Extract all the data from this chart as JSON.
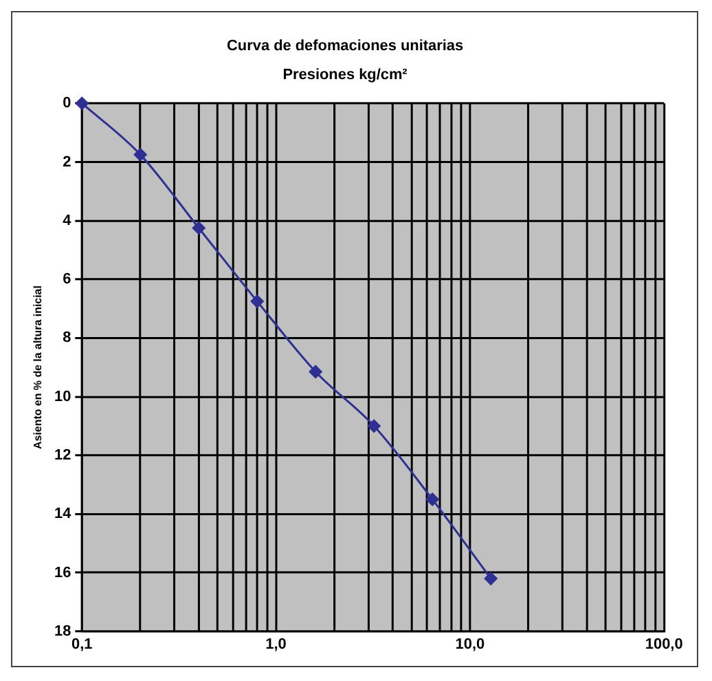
{
  "chart_data": {
    "type": "line",
    "title": "Curva de defomaciones unitarias",
    "xlabel": "Presiones kg/cm²",
    "ylabel": "Asiento en % de la altura inicial",
    "x": [
      0.1,
      0.2,
      0.4,
      0.8,
      1.6,
      3.2,
      6.4,
      12.8
    ],
    "series": [
      {
        "color": "#2e3192",
        "values": [
          0,
          1.75,
          4.25,
          6.75,
          9.15,
          11.0,
          13.5,
          16.2
        ]
      }
    ],
    "log": "x",
    "xlim": [
      0.1,
      100
    ],
    "xticks": [
      {
        "value": 0.1,
        "label": "0,1"
      },
      {
        "value": 0.2,
        "label": null
      },
      {
        "value": 0.3,
        "label": null
      },
      {
        "value": 0.4,
        "label": null
      },
      {
        "value": 0.5,
        "label": null
      },
      {
        "value": 0.6,
        "label": null
      },
      {
        "value": 0.7,
        "label": null
      },
      {
        "value": 0.8,
        "label": null
      },
      {
        "value": 0.9,
        "label": null
      },
      {
        "value": 1,
        "label": "1,0"
      },
      {
        "value": 2,
        "label": null
      },
      {
        "value": 3,
        "label": null
      },
      {
        "value": 4,
        "label": null
      },
      {
        "value": 5,
        "label": null
      },
      {
        "value": 6,
        "label": null
      },
      {
        "value": 7,
        "label": null
      },
      {
        "value": 8,
        "label": null
      },
      {
        "value": 9,
        "label": null
      },
      {
        "value": 10,
        "label": "10,0"
      },
      {
        "value": 20,
        "label": null
      },
      {
        "value": 30,
        "label": null
      },
      {
        "value": 40,
        "label": null
      },
      {
        "value": 50,
        "label": null
      },
      {
        "value": 60,
        "label": null
      },
      {
        "value": 70,
        "label": null
      },
      {
        "value": 80,
        "label": null
      },
      {
        "value": 90,
        "label": null
      },
      {
        "value": 100,
        "label": "100,0"
      }
    ],
    "ylim": [
      18,
      0
    ],
    "yticks": [
      0,
      2,
      4,
      6,
      8,
      10,
      12,
      14,
      16,
      18
    ],
    "grid": true,
    "legend": false,
    "marker": "diamond",
    "line_style": "solid"
  }
}
